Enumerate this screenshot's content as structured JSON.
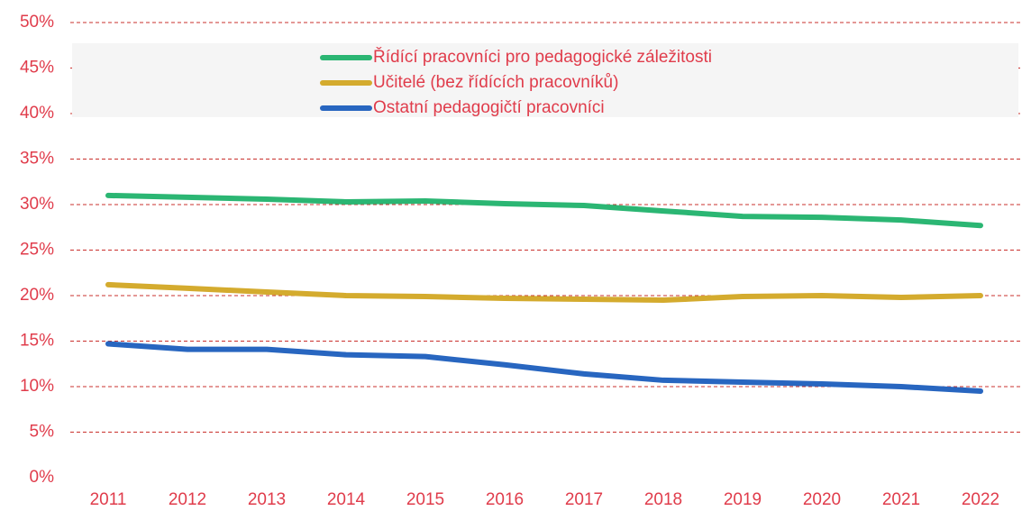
{
  "chart_data": {
    "type": "line",
    "categories": [
      "2011",
      "2012",
      "2013",
      "2014",
      "2015",
      "2016",
      "2017",
      "2018",
      "2019",
      "2020",
      "2021",
      "2022"
    ],
    "series": [
      {
        "name": "Řídící pracovníci pro pedagogické záležitosti",
        "color": "#2bb673",
        "values": [
          31.0,
          30.8,
          30.6,
          30.3,
          30.4,
          30.1,
          29.9,
          29.3,
          28.7,
          28.6,
          28.3,
          27.7
        ]
      },
      {
        "name": "Učitelé (bez řídících pracovníků)",
        "color": "#d4ab2e",
        "values": [
          21.2,
          20.8,
          20.4,
          20.0,
          19.9,
          19.7,
          19.6,
          19.5,
          19.9,
          20.0,
          19.8,
          20.0
        ]
      },
      {
        "name": "Ostatní pedagogičtí pracovníci",
        "color": "#2866c0",
        "values": [
          14.7,
          14.1,
          14.1,
          13.5,
          13.3,
          12.4,
          11.4,
          10.7,
          10.5,
          10.3,
          10.0,
          9.5
        ]
      }
    ],
    "ylim": [
      0,
      50
    ],
    "yticks": [
      {
        "value": 0,
        "label": "0%"
      },
      {
        "value": 5,
        "label": "5%"
      },
      {
        "value": 10,
        "label": "10%"
      },
      {
        "value": 15,
        "label": "15%"
      },
      {
        "value": 20,
        "label": "20%"
      },
      {
        "value": 25,
        "label": "25%"
      },
      {
        "value": 30,
        "label": "30%"
      },
      {
        "value": 35,
        "label": "35%"
      },
      {
        "value": 40,
        "label": "40%"
      },
      {
        "value": 45,
        "label": "45%"
      },
      {
        "value": 50,
        "label": "50%"
      }
    ],
    "grid": true,
    "legend": "top"
  }
}
